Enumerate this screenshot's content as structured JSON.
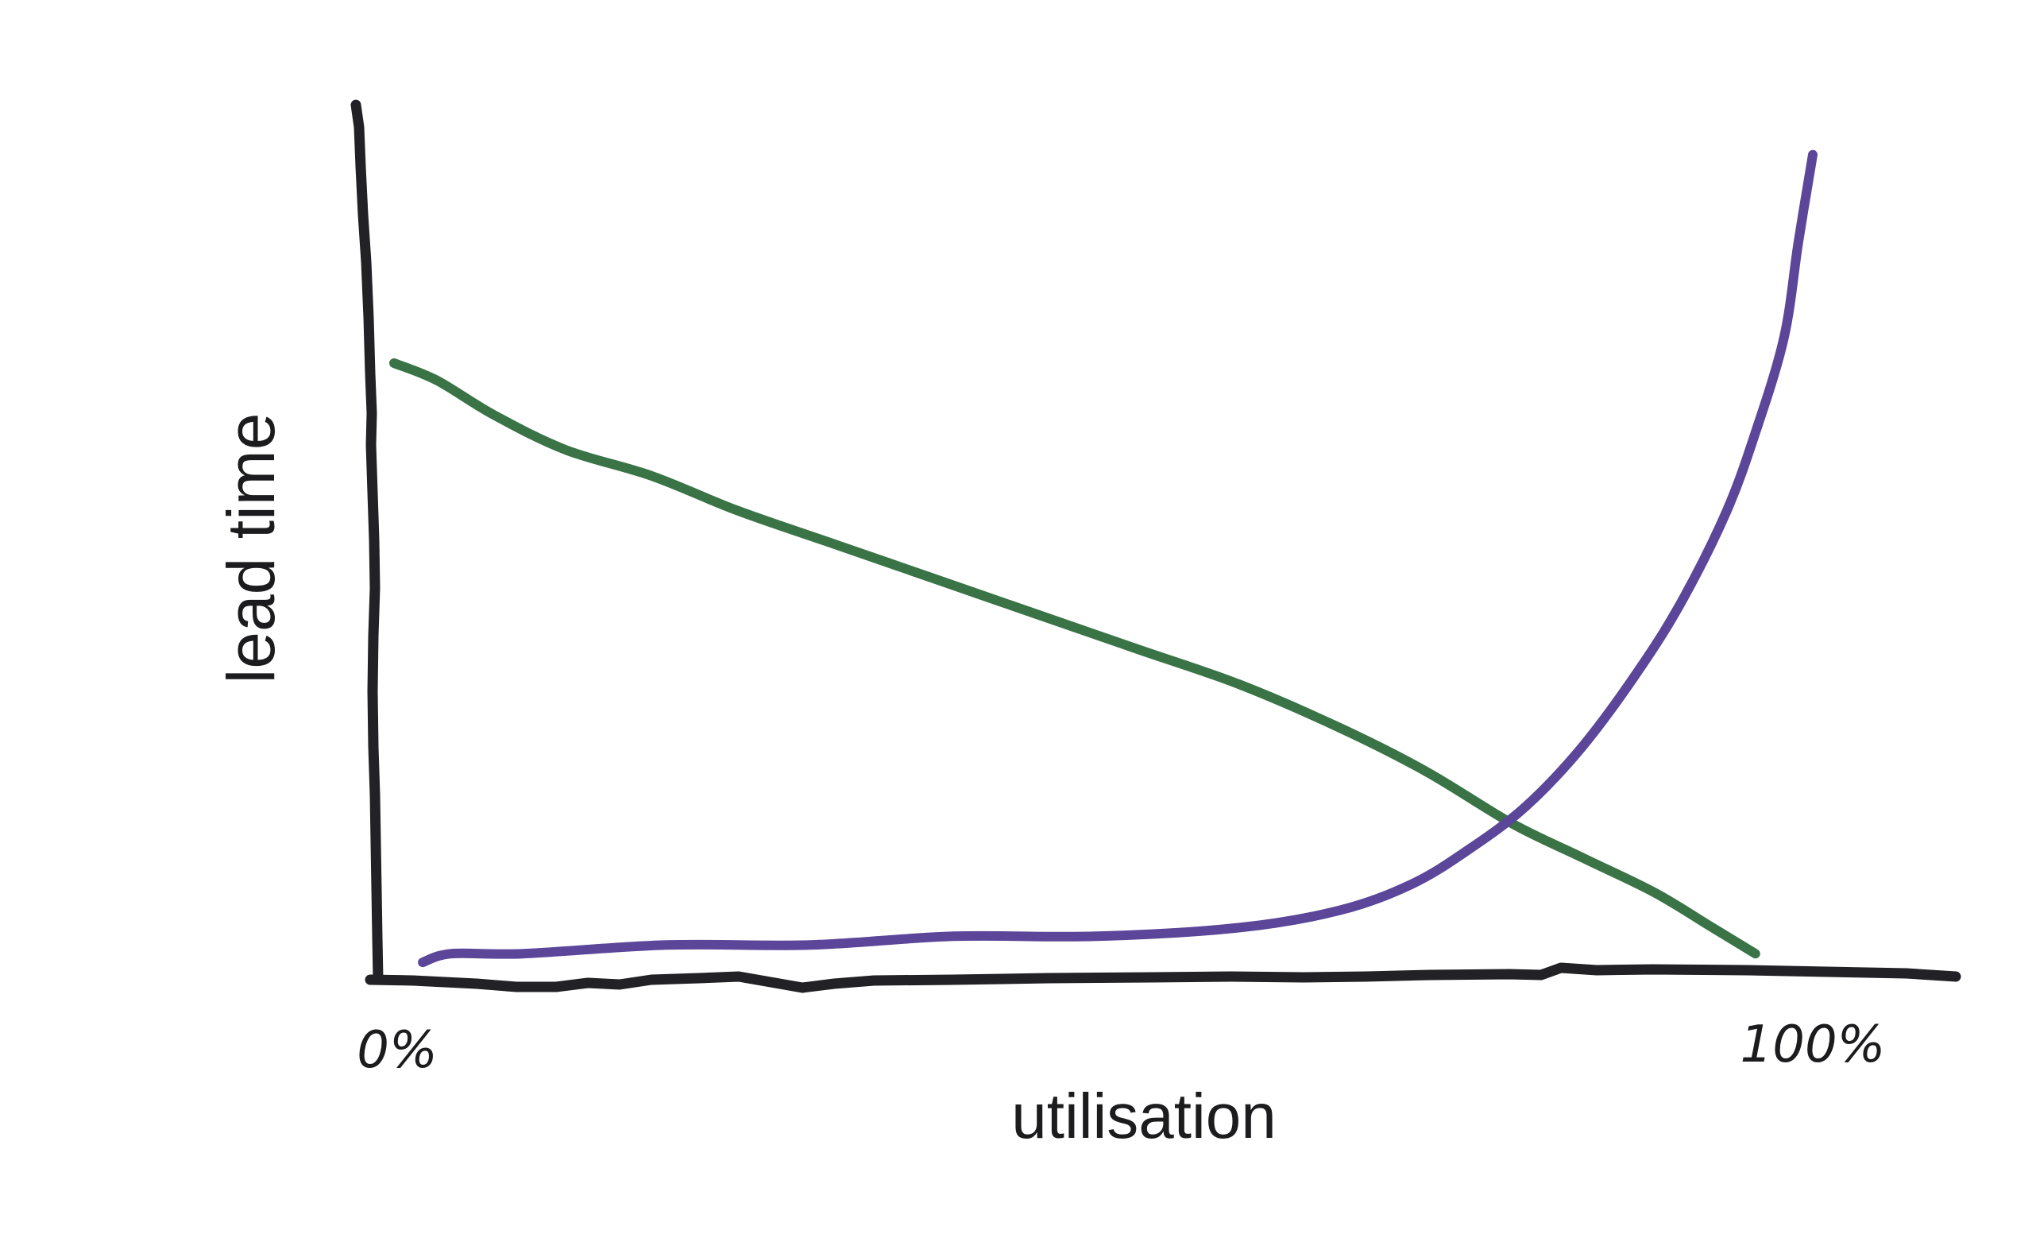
{
  "chart_data": {
    "type": "line",
    "xlabel": "utilisation",
    "ylabel": "lead time",
    "x_tick_labels": [
      "0%",
      "100%"
    ],
    "xlim": [
      0,
      100
    ],
    "ylim": [
      0,
      100
    ],
    "grid": false,
    "legend": "none",
    "series": [
      {
        "color": "#3a7346",
        "x": [
          1,
          4,
          8,
          13,
          19,
          25,
          32,
          39,
          46,
          53,
          60,
          67,
          73,
          79,
          84,
          89,
          93,
          96
        ],
        "y": [
          71,
          69,
          65,
          61,
          58,
          54,
          50,
          46,
          42,
          38,
          34,
          29,
          24,
          18,
          14,
          10,
          6,
          3
        ]
      },
      {
        "color": "#5b4699",
        "x": [
          3,
          5,
          10,
          20,
          30,
          40,
          50,
          60,
          67,
          72,
          76,
          80,
          84,
          88,
          91,
          94,
          96,
          98,
          99,
          100
        ],
        "y": [
          2,
          3,
          3,
          4,
          4,
          5,
          5,
          6,
          8,
          11,
          15,
          20,
          27,
          36,
          44,
          54,
          63,
          74,
          85,
          95
        ]
      }
    ],
    "axis_color": "#222226"
  }
}
